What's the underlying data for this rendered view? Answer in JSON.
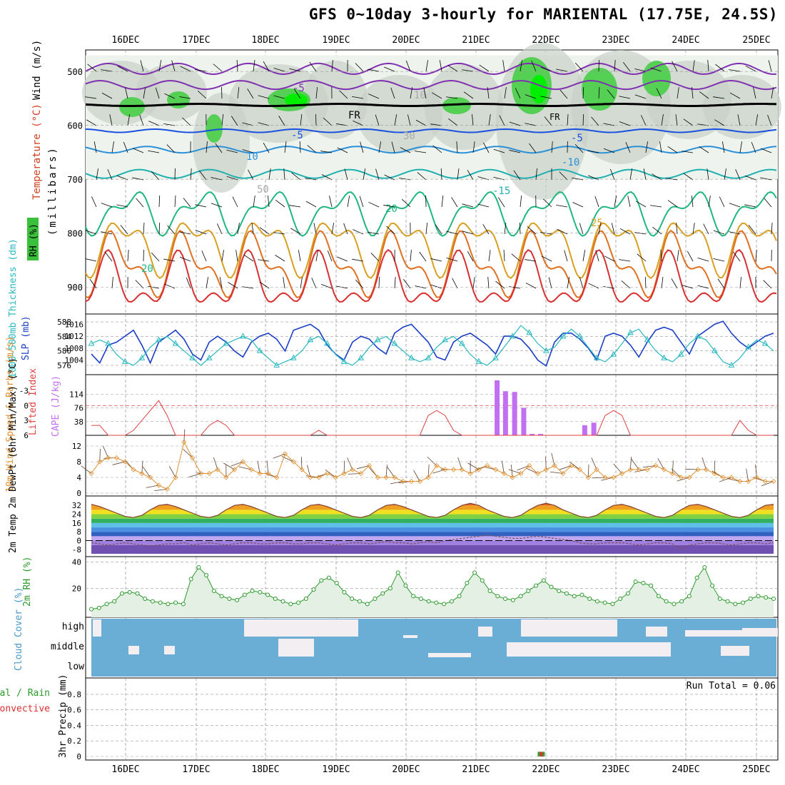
{
  "title": "GFS 0~10day 3-hourly for MARIENTAL (17.75E, 24.5S)",
  "dates": [
    "16DEC",
    "17DEC",
    "18DEC",
    "19DEC",
    "20DEC",
    "21DEC",
    "22DEC",
    "23DEC",
    "24DEC",
    "25DEC"
  ],
  "colors": {
    "grid": "#999999",
    "slp": "#1a3fc6",
    "thickness": "#2ab8c0",
    "cape": "#c070f0",
    "lifted": "#e04040",
    "wind10": "#e09030",
    "rh2m": "#2a9a2a",
    "cloud": "#6aaed6",
    "cloud_clear": "#f2eef2",
    "temp_line": "#804030",
    "dew_line": "#805060"
  },
  "chart_data": [
    {
      "type": "contour",
      "name": "upper_panel",
      "ylabel_parts": [
        "RH (%)",
        "Temperature (°C)",
        "Wind (m/s)"
      ],
      "ylabel_side": "(millibars)",
      "y_ticks": [
        500,
        600,
        700,
        800,
        900
      ],
      "y_range": [
        460,
        950
      ],
      "temp_labels": [
        "-5",
        "FR",
        "-5",
        "10",
        "20",
        "25",
        "-15",
        "-5",
        "-10",
        "10",
        "30",
        "50",
        "20"
      ],
      "freezing_label": "FR"
    },
    {
      "type": "line",
      "name": "thickness_slp",
      "ylabel_left": "1000~500mb Thickness (dm)",
      "ylabel_right": "SLP (mb)",
      "left_ticks": [
        576,
        580,
        584,
        588
      ],
      "right_ticks": [
        1004,
        1008,
        1012,
        1016
      ],
      "slp_values": [
        1006,
        1003,
        1009,
        1010,
        1012,
        1014,
        1009,
        1003,
        1010,
        1012,
        1014,
        1011,
        1006,
        1004,
        1010,
        1012,
        1010,
        1007,
        1005,
        1010,
        1012,
        1013,
        1011,
        1007,
        1014,
        1015,
        1016,
        1014,
        1009,
        1006,
        1004,
        1010,
        1012,
        1011,
        1008,
        1006,
        1013,
        1015,
        1016,
        1013,
        1010,
        1005,
        1004,
        1010,
        1012,
        1013,
        1011,
        1009,
        1006,
        1012,
        1012,
        1011,
        1008,
        1004,
        1002,
        1010,
        1013,
        1013,
        1011,
        1008,
        1004,
        1012,
        1013,
        1012,
        1009,
        1005,
        1010,
        1014,
        1015,
        1014,
        1010,
        1006,
        1012,
        1014,
        1016,
        1017,
        1013,
        1010,
        1008,
        1010,
        1012,
        1013
      ],
      "thickness_values": [
        582,
        583,
        582,
        579,
        577,
        576,
        578,
        581,
        583,
        584,
        582,
        580,
        578,
        576,
        578,
        580,
        582,
        583,
        584,
        583,
        580,
        578,
        576,
        577,
        578,
        580,
        583,
        584,
        582,
        579,
        577,
        576,
        578,
        581,
        583,
        584,
        582,
        580,
        578,
        577,
        578,
        581,
        583,
        584,
        582,
        579,
        577,
        576,
        578,
        581,
        584,
        587,
        585,
        582,
        580,
        581,
        584,
        586,
        584,
        581,
        578,
        577,
        579,
        582,
        585,
        586,
        583,
        580,
        578,
        577,
        579,
        582,
        584,
        583,
        580,
        577,
        576,
        578,
        581,
        583,
        582,
        580
      ]
    },
    {
      "type": "bar",
      "name": "cape_lifted",
      "ylabel_left": "Lifted Index",
      "ylabel_right": "CAPE (J/kg)",
      "left_ticks": [
        "-3",
        "0",
        "3",
        "6"
      ],
      "right_ticks": [
        38,
        76,
        114
      ],
      "cape_bars": [
        {
          "day": 21.3,
          "value": 152
        },
        {
          "day": 21.42,
          "value": 122
        },
        {
          "day": 21.55,
          "value": 120
        },
        {
          "day": 21.68,
          "value": 76
        },
        {
          "day": 21.8,
          "value": 4
        },
        {
          "day": 21.92,
          "value": 4
        },
        {
          "day": 22.55,
          "value": 28
        },
        {
          "day": 22.68,
          "value": 35
        }
      ],
      "lifted_values": [
        4,
        4,
        6,
        6,
        6,
        5,
        3,
        1,
        -1,
        2,
        6,
        6,
        6,
        6,
        4,
        3,
        4,
        6,
        6,
        6,
        6,
        6,
        6,
        6,
        6,
        6,
        6,
        5,
        6,
        6,
        6,
        6,
        6,
        6,
        6,
        6,
        6,
        6,
        6,
        6,
        2,
        1,
        2,
        5,
        6,
        6,
        6,
        6,
        6,
        6,
        6,
        6,
        6,
        6,
        6,
        6,
        6,
        6,
        6,
        6,
        6,
        2,
        1,
        2,
        6,
        6,
        6,
        6,
        6,
        6,
        6,
        6,
        6,
        6,
        6,
        6,
        6,
        3,
        5,
        6,
        6,
        6
      ]
    },
    {
      "type": "line",
      "name": "wind10m",
      "ylabel": "10m Wind Speed & Barbs (m/s)",
      "ticks": [
        0,
        4,
        8,
        12
      ],
      "values": [
        5,
        8,
        9,
        9,
        8,
        6,
        5,
        4,
        2,
        1,
        4,
        13,
        9,
        5,
        5,
        6,
        4,
        6,
        8,
        6,
        5,
        5,
        4,
        10,
        8,
        6,
        4,
        4,
        5,
        4,
        5,
        6,
        5,
        7,
        4,
        4,
        4,
        3,
        3,
        3,
        4,
        7,
        6,
        6,
        6,
        5,
        6,
        7,
        6,
        5,
        4,
        5,
        7,
        5,
        6,
        7,
        5,
        7,
        6,
        4,
        6,
        4,
        4,
        5,
        6,
        6,
        6,
        7,
        6,
        5,
        4,
        4,
        6,
        6,
        5,
        4,
        4,
        3,
        3,
        4,
        3,
        3
      ]
    },
    {
      "type": "area",
      "name": "temp2m",
      "ylabel": "2m Temp 2m DewPt (6hr Min/Max) (°C)",
      "ticks": [
        -8,
        0,
        8,
        16,
        24,
        32
      ],
      "temp_values": [
        33,
        31,
        28,
        25,
        22,
        21,
        23,
        28,
        32,
        33,
        31,
        28,
        25,
        22,
        21,
        23,
        28,
        32,
        33,
        31,
        28,
        25,
        22,
        21,
        23,
        28,
        32,
        33,
        31,
        28,
        25,
        22,
        21,
        23,
        28,
        32,
        33,
        31,
        28,
        25,
        22,
        21,
        23,
        28,
        32,
        34,
        32,
        28,
        25,
        22,
        21,
        23,
        28,
        32,
        34,
        32,
        28,
        25,
        22,
        21,
        23,
        28,
        32,
        33,
        31,
        28,
        25,
        22,
        21,
        23,
        28,
        32,
        33,
        31,
        28,
        25,
        22,
        21,
        23,
        28,
        32,
        33
      ],
      "dew_values": [
        -2,
        -3,
        -4,
        -3,
        -2,
        -3,
        -4,
        -5,
        -4,
        -3,
        -3,
        -2,
        -4,
        -3,
        -2,
        -3,
        -4,
        -3,
        -2,
        -2,
        -3,
        -3,
        -2,
        -2,
        -3,
        -3,
        -2,
        -2,
        -3,
        -4,
        -3,
        -2,
        -2,
        -3,
        -2,
        -1,
        -2,
        -2,
        -3,
        -2,
        -1,
        -2,
        0,
        1,
        2,
        3,
        4,
        5,
        4,
        3,
        2,
        2,
        3,
        4,
        3,
        2,
        1,
        0,
        -2,
        -3,
        -3,
        -2,
        -2,
        -2,
        -3,
        -4,
        -3,
        -2,
        -2,
        -3,
        -8,
        -4,
        -3,
        -2,
        -2,
        -3,
        -4,
        -3,
        -2,
        -2,
        -3,
        -2
      ]
    },
    {
      "type": "area",
      "name": "rh2m",
      "ylabel": "2m RH (%)",
      "ticks": [
        20,
        40
      ],
      "values": [
        4,
        5,
        8,
        10,
        16,
        17,
        16,
        12,
        10,
        9,
        8,
        9,
        8,
        27,
        36,
        30,
        18,
        14,
        12,
        11,
        15,
        18,
        17,
        15,
        12,
        10,
        8,
        9,
        12,
        19,
        26,
        28,
        24,
        17,
        12,
        10,
        8,
        12,
        16,
        20,
        32,
        22,
        14,
        12,
        10,
        9,
        8,
        10,
        14,
        24,
        32,
        26,
        18,
        14,
        12,
        11,
        14,
        18,
        22,
        26,
        21,
        18,
        16,
        14,
        15,
        12,
        10,
        9,
        8,
        12,
        16,
        25,
        24,
        22,
        14,
        10,
        8,
        10,
        14,
        28,
        36,
        22,
        12,
        10,
        8,
        9,
        12,
        14,
        13,
        12
      ]
    },
    {
      "type": "heatmap",
      "name": "cloud_cover",
      "ylabel": "Cloud Cover (%)",
      "levels": [
        "high",
        "middle",
        "low"
      ]
    },
    {
      "type": "bar",
      "name": "precip",
      "ylabel": "3hr Precip (mm)",
      "legend_left": [
        "Total / Rain",
        "Convective"
      ],
      "ticks": [
        "0",
        "0.2",
        "0.4",
        "0.6",
        "0.8"
      ],
      "run_total_label": "Run Total = 0.06",
      "bars": [
        {
          "day": 21.93,
          "value": 0.06
        }
      ]
    }
  ]
}
